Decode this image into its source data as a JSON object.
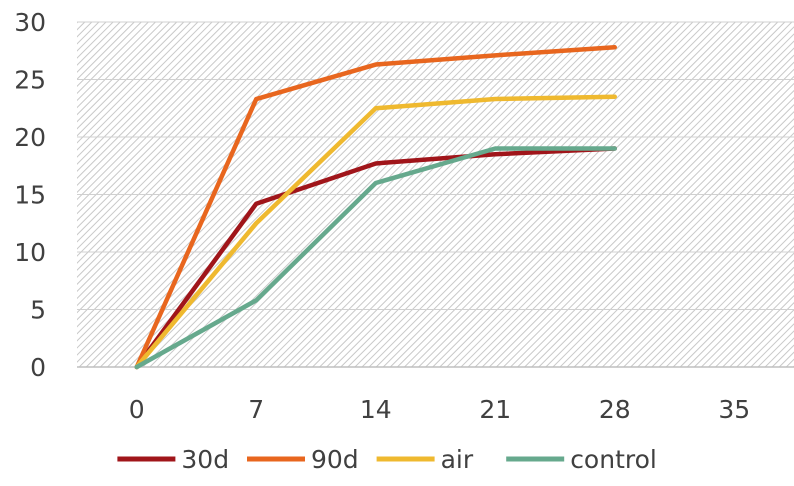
{
  "chart_data": {
    "type": "line",
    "title": "",
    "xlabel": "",
    "ylabel": "",
    "x": [
      0,
      7,
      14,
      21,
      28
    ],
    "x_ticks": [
      "0",
      "7",
      "14",
      "21",
      "28",
      "35"
    ],
    "y_ticks": [
      "0",
      "5",
      "10",
      "15",
      "20",
      "25",
      "30"
    ],
    "xlim": [
      -3.5,
      38.5
    ],
    "ylim": [
      0,
      30
    ],
    "grid": false,
    "plot_background": "diagonal-hatch",
    "legend_position": "bottom",
    "series": [
      {
        "name": "30d",
        "color": "#A0151A",
        "values": [
          0,
          14.2,
          17.7,
          18.5,
          19.0
        ]
      },
      {
        "name": "90d",
        "color": "#E8661E",
        "values": [
          0,
          23.3,
          26.3,
          27.1,
          27.8
        ]
      },
      {
        "name": "air",
        "color": "#EFB92F",
        "values": [
          0,
          12.5,
          22.5,
          23.3,
          23.5
        ]
      },
      {
        "name": "control",
        "color": "#66A98D",
        "values": [
          0,
          5.8,
          16.0,
          19.0,
          19.0
        ]
      }
    ]
  }
}
